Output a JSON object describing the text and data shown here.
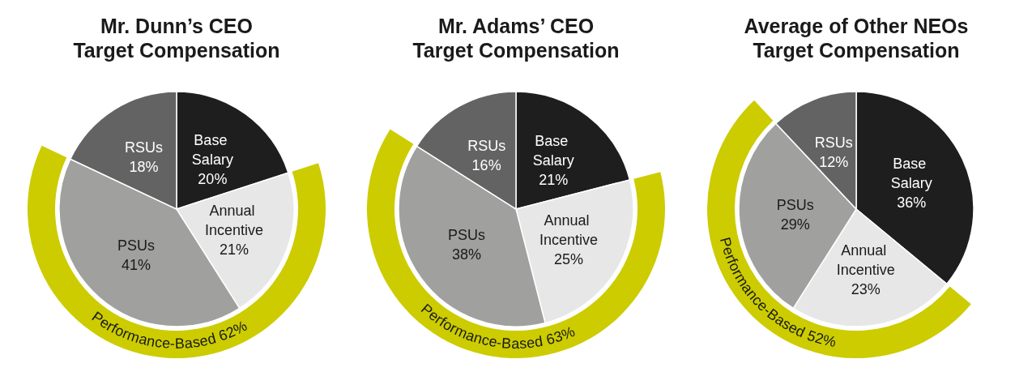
{
  "chart_data": [
    {
      "type": "pie",
      "title": "Mr. Dunn’s CEO\nTarget Compensation",
      "categories": [
        "Base Salary",
        "Annual Incentive",
        "PSUs",
        "RSUs"
      ],
      "values": [
        20,
        21,
        41,
        18
      ],
      "value_labels": [
        "20%",
        "21%",
        "41%",
        "18%"
      ],
      "colors": [
        "#1e1e1e",
        "#e6e7e6",
        "#a0a09f",
        "#636363"
      ],
      "bands": [
        {
          "label": "Performance-Based 62%",
          "color": "#cccc00"
        }
      ]
    },
    {
      "type": "pie",
      "title": "Mr. Adams’ CEO\nTarget Compensation",
      "categories": [
        "Base Salary",
        "Annual Incentive",
        "PSUs",
        "RSUs"
      ],
      "values": [
        21,
        25,
        38,
        16
      ],
      "value_labels": [
        "21%",
        "25%",
        "38%",
        "16%"
      ],
      "colors": [
        "#1e1e1e",
        "#e6e7e6",
        "#a0a09f",
        "#636363"
      ],
      "bands": [
        {
          "label": "Performance-Based 63%",
          "color": "#cccc00"
        }
      ]
    },
    {
      "type": "pie",
      "title": "Average of Other NEOs\nTarget Compensation",
      "categories": [
        "Base Salary",
        "Annual Incentive",
        "PSUs",
        "RSUs"
      ],
      "values": [
        36,
        23,
        29,
        12
      ],
      "value_labels": [
        "36%",
        "23%",
        "29%",
        "12%"
      ],
      "colors": [
        "#1e1e1e",
        "#e6e7e6",
        "#a0a09f",
        "#636363"
      ],
      "bands": [
        {
          "label": "Performance-Based 52%",
          "color": "#cccc00"
        }
      ]
    }
  ]
}
